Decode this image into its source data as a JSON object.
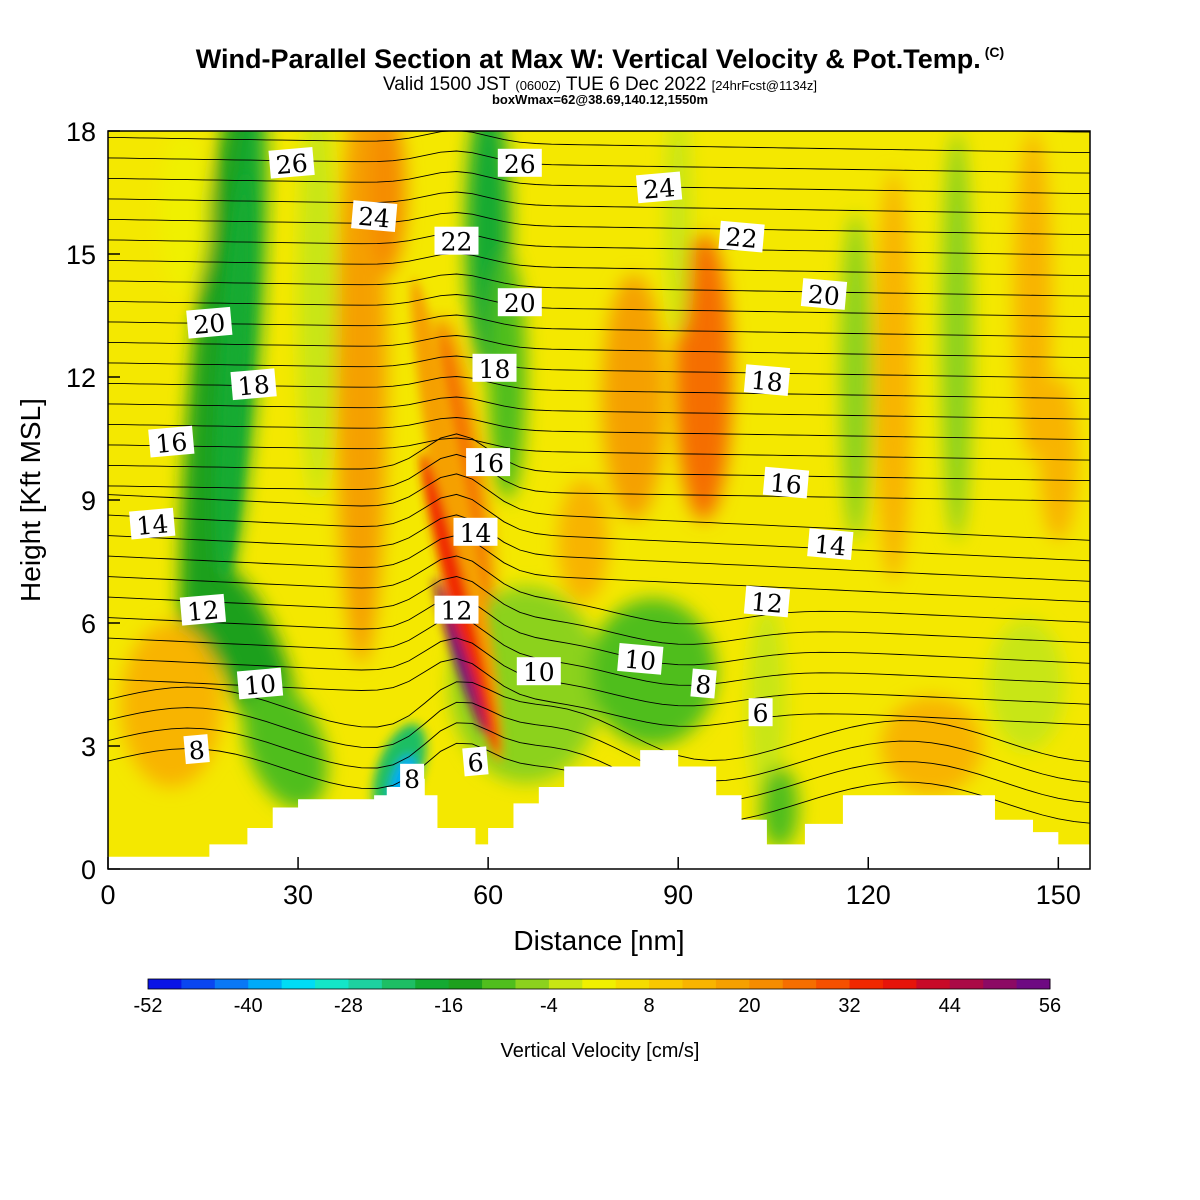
{
  "header": {
    "title": "Wind-Parallel Section at Max W: Vertical Velocity & Pot.Temp.",
    "copyright_mark": "(C)",
    "valid_prefix": "Valid 1500 JST",
    "valid_utc": "(0600Z)",
    "valid_date": "TUE 6 Dec 2022",
    "forecast_info": "[24hrFcst@1134z]",
    "box_info": "boxWmax=62@38.69,140.12,1550m"
  },
  "chart_data": {
    "type": "heatmap",
    "xlabel": "Distance [nm]",
    "ylabel": "Height [Kft MSL]",
    "xlim": [
      0,
      155
    ],
    "ylim": [
      0,
      18
    ],
    "x_ticks": [
      0,
      30,
      60,
      90,
      120,
      150
    ],
    "y_ticks": [
      0,
      3,
      6,
      9,
      12,
      15,
      18
    ],
    "colorbar": {
      "label": "Vertical Velocity [cm/s]",
      "tick_labels": [
        -52,
        -40,
        -28,
        -16,
        -4,
        8,
        20,
        32,
        44,
        56
      ],
      "levels": [
        -52,
        -48,
        -44,
        -40,
        -36,
        -32,
        -28,
        -24,
        -20,
        -16,
        -12,
        -8,
        -4,
        0,
        4,
        8,
        12,
        16,
        20,
        24,
        28,
        32,
        36,
        40,
        44,
        48,
        52,
        56
      ],
      "colors": [
        "#0a14e6",
        "#0a46f0",
        "#0a78f5",
        "#00aaf8",
        "#00dcf5",
        "#14e6c8",
        "#1ed2a0",
        "#1ebe64",
        "#14aa32",
        "#1ea01e",
        "#50be1e",
        "#8cd21e",
        "#c8e614",
        "#f0f000",
        "#f5dc00",
        "#f8c800",
        "#f8b400",
        "#f5a000",
        "#f58c00",
        "#f56e00",
        "#f55000",
        "#f02800",
        "#e6140a",
        "#c80a28",
        "#aa0a46",
        "#8c0a64",
        "#6e0a82"
      ]
    },
    "vertical_velocity_features": [
      {
        "x": 55,
        "y": 5,
        "w": 56,
        "note": "strong updraft core"
      },
      {
        "x": 46,
        "y": 2.2,
        "w": -40,
        "note": "downdraft near terrain"
      },
      {
        "x": 20,
        "y": 12,
        "w": -18
      },
      {
        "x": 62,
        "y": 15,
        "w": -18
      },
      {
        "x": 86,
        "y": 4.5,
        "w": -10
      },
      {
        "x": 94,
        "y": 11.5,
        "w": 28
      }
    ],
    "theta_contour_labels": [
      {
        "text": "26",
        "x": 29,
        "y": 17.2
      },
      {
        "text": "26",
        "x": 65,
        "y": 17.2
      },
      {
        "text": "24",
        "x": 42,
        "y": 15.9
      },
      {
        "text": "24",
        "x": 87,
        "y": 16.6
      },
      {
        "text": "22",
        "x": 55,
        "y": 15.3
      },
      {
        "text": "22",
        "x": 100,
        "y": 15.4
      },
      {
        "text": "20",
        "x": 16,
        "y": 13.3
      },
      {
        "text": "20",
        "x": 65,
        "y": 13.8
      },
      {
        "text": "20",
        "x": 113,
        "y": 14
      },
      {
        "text": "18",
        "x": 23,
        "y": 11.8
      },
      {
        "text": "18",
        "x": 61,
        "y": 12.2
      },
      {
        "text": "18",
        "x": 104,
        "y": 11.9
      },
      {
        "text": "16",
        "x": 10,
        "y": 10.4
      },
      {
        "text": "16",
        "x": 60,
        "y": 9.9
      },
      {
        "text": "16",
        "x": 107,
        "y": 9.4
      },
      {
        "text": "14",
        "x": 7,
        "y": 8.4
      },
      {
        "text": "14",
        "x": 58,
        "y": 8.2
      },
      {
        "text": "14",
        "x": 114,
        "y": 7.9
      },
      {
        "text": "12",
        "x": 15,
        "y": 6.3
      },
      {
        "text": "12",
        "x": 55,
        "y": 6.3
      },
      {
        "text": "12",
        "x": 104,
        "y": 6.5
      },
      {
        "text": "10",
        "x": 24,
        "y": 4.5
      },
      {
        "text": "10",
        "x": 68,
        "y": 4.8
      },
      {
        "text": "10",
        "x": 84,
        "y": 5.1
      },
      {
        "text": "8",
        "x": 14,
        "y": 2.9
      },
      {
        "text": "8",
        "x": 48,
        "y": 2.2
      },
      {
        "text": "8",
        "x": 94,
        "y": 4.5
      },
      {
        "text": "6",
        "x": 58,
        "y": 2.6
      },
      {
        "text": "6",
        "x": 103,
        "y": 3.8
      }
    ],
    "terrain_height_kft": [
      {
        "x": 0,
        "h": 0.3
      },
      {
        "x": 16,
        "h": 0.6
      },
      {
        "x": 22,
        "h": 1.0
      },
      {
        "x": 26,
        "h": 1.5
      },
      {
        "x": 30,
        "h": 1.7
      },
      {
        "x": 42,
        "h": 1.8
      },
      {
        "x": 44,
        "h": 2.0
      },
      {
        "x": 47,
        "h": 2.2
      },
      {
        "x": 50,
        "h": 1.8
      },
      {
        "x": 52,
        "h": 1.0
      },
      {
        "x": 58,
        "h": 0.6
      },
      {
        "x": 60,
        "h": 1.0
      },
      {
        "x": 64,
        "h": 1.6
      },
      {
        "x": 68,
        "h": 2.0
      },
      {
        "x": 72,
        "h": 2.5
      },
      {
        "x": 84,
        "h": 2.9
      },
      {
        "x": 90,
        "h": 2.5
      },
      {
        "x": 96,
        "h": 1.8
      },
      {
        "x": 100,
        "h": 1.2
      },
      {
        "x": 104,
        "h": 0.6
      },
      {
        "x": 110,
        "h": 1.1
      },
      {
        "x": 116,
        "h": 1.8
      },
      {
        "x": 134,
        "h": 1.8
      },
      {
        "x": 140,
        "h": 1.2
      },
      {
        "x": 146,
        "h": 0.9
      },
      {
        "x": 150,
        "h": 0.6
      },
      {
        "x": 155,
        "h": 0.6
      }
    ]
  }
}
